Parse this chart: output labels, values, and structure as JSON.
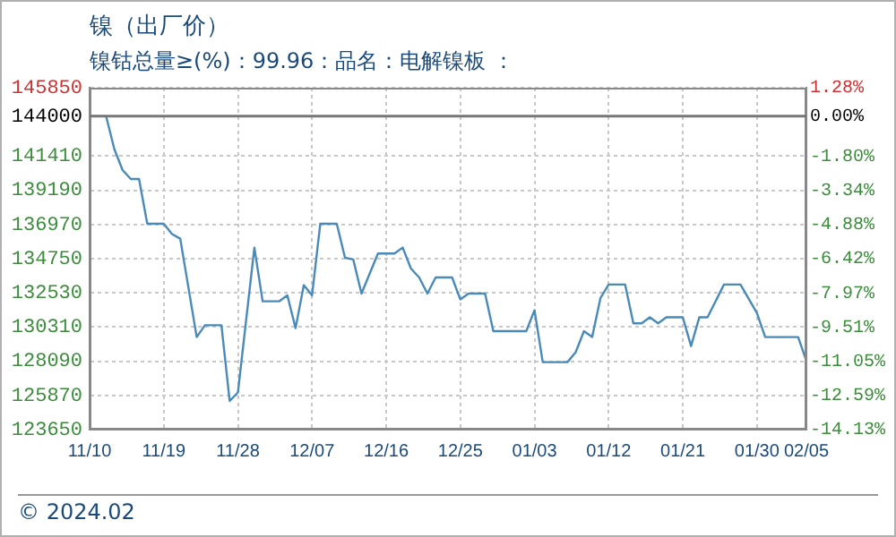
{
  "chart_data": {
    "type": "line",
    "title": "镍（出厂价）",
    "subtitle": "镍钴总量≥(%)：99.96：品名：电解镍板 ：",
    "annotations": [
      "© 2024.02"
    ],
    "x": [
      "2023-11-10",
      "2023-11-12",
      "2023-11-13",
      "2023-11-14",
      "2023-11-15",
      "2023-11-16",
      "2023-11-17",
      "2023-11-19",
      "2023-11-20",
      "2023-11-21",
      "2023-11-23",
      "2023-11-24",
      "2023-11-26",
      "2023-11-27",
      "2023-11-28",
      "2023-11-30",
      "2023-12-01",
      "2023-12-03",
      "2023-12-04",
      "2023-12-05",
      "2023-12-06",
      "2023-12-07",
      "2023-12-08",
      "2023-12-10",
      "2023-12-11",
      "2023-12-12",
      "2023-12-13",
      "2023-12-15",
      "2023-12-17",
      "2023-12-18",
      "2023-12-19",
      "2023-12-20",
      "2023-12-21",
      "2023-12-22",
      "2023-12-24",
      "2023-12-25",
      "2023-12-26",
      "2023-12-28",
      "2023-12-29",
      "2024-01-02",
      "2024-01-03",
      "2024-01-04",
      "2024-01-07",
      "2024-01-08",
      "2024-01-09",
      "2024-01-10",
      "2024-01-11",
      "2024-01-12",
      "2024-01-14",
      "2024-01-15",
      "2024-01-16",
      "2024-01-17",
      "2024-01-18",
      "2024-01-19",
      "2024-01-21",
      "2024-01-22",
      "2024-01-23",
      "2024-01-24",
      "2024-01-26",
      "2024-01-28",
      "2024-01-30",
      "2024-01-31",
      "2024-02-04",
      "2024-02-05"
    ],
    "series": [
      {
        "color": "#4a8ab8",
        "values": [
          144000,
          144000,
          141870,
          140500,
          139920,
          139920,
          137020,
          137020,
          136350,
          136050,
          129660,
          130430,
          130430,
          125510,
          126060,
          135470,
          131980,
          131980,
          132370,
          130240,
          133030,
          132370,
          137020,
          137020,
          134810,
          134700,
          132480,
          135080,
          135080,
          135470,
          134110,
          133530,
          132480,
          133530,
          133530,
          132100,
          132480,
          132480,
          130040,
          130040,
          131400,
          128030,
          128030,
          128680,
          130040,
          129660,
          132180,
          133070,
          133070,
          130550,
          130550,
          130940,
          130550,
          130940,
          130940,
          129080,
          130940,
          130940,
          133070,
          133070,
          131210,
          129660,
          129660,
          128100
        ]
      }
    ],
    "xlim": [
      "2023-11-10",
      "2024-02-05"
    ],
    "xticks": [
      {
        "value": "2023-11-10",
        "label": "11/10"
      },
      {
        "value": "2023-11-19",
        "label": "11/19"
      },
      {
        "value": "2023-11-28",
        "label": "11/28"
      },
      {
        "value": "2023-12-07",
        "label": "12/07"
      },
      {
        "value": "2023-12-16",
        "label": "12/16"
      },
      {
        "value": "2023-12-25",
        "label": "12/25"
      },
      {
        "value": "2024-01-03",
        "label": "01/03"
      },
      {
        "value": "2024-01-12",
        "label": "01/12"
      },
      {
        "value": "2024-01-21",
        "label": "01/21"
      },
      {
        "value": "2024-01-30",
        "label": "01/30"
      },
      {
        "value": "2024-02-05",
        "label": "02/05"
      }
    ],
    "ylim": [
      123650,
      145850
    ],
    "yticks": [
      123650,
      125870,
      128090,
      130310,
      132530,
      134750,
      136970,
      139190,
      141410,
      144000,
      145850
    ],
    "y2lim": [
      -14.13,
      1.28
    ],
    "y2ticks": [
      {
        "value": -14.13,
        "label": "-14.13%"
      },
      {
        "value": -12.59,
        "label": "-12.59%"
      },
      {
        "value": -11.05,
        "label": "-11.05%"
      },
      {
        "value": -9.51,
        "label": "-9.51%"
      },
      {
        "value": -7.97,
        "label": "-7.97%"
      },
      {
        "value": -6.42,
        "label": "-6.42%"
      },
      {
        "value": -4.88,
        "label": "-4.88%"
      },
      {
        "value": -3.34,
        "label": "-3.34%"
      },
      {
        "value": -1.8,
        "label": "-1.80%"
      },
      {
        "value": 0,
        "label": "0.00%"
      },
      {
        "value": 1.28,
        "label": "1.28%"
      }
    ],
    "ref_lines": [
      {
        "axis": "y",
        "value": 144000,
        "color": "#777777"
      }
    ],
    "grid": true,
    "legend": false,
    "marker": "none",
    "line_style": "solid"
  }
}
